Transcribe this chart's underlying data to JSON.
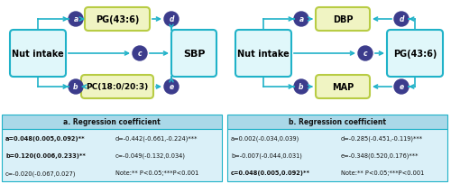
{
  "fig_width": 5.0,
  "fig_height": 2.05,
  "dpi": 100,
  "bg_color": "#ffffff",
  "arrow_color": "#20b2c8",
  "circle_fill": "#3c3c8c",
  "circle_edge": "#3c3c8c",
  "circle_text": "#ffffff",
  "cyan_box_fill": "#e0f7fa",
  "cyan_box_edge": "#20b2c8",
  "cyan_box_text": "#000000",
  "green_box_fill": "#f0f4c3",
  "green_box_edge": "#b8cc44",
  "green_box_text": "#000000",
  "table_header_bg": "#aad8e8",
  "table_body_bg": "#daf0f8",
  "table_border": "#20b2c8",
  "panel_a": {
    "table_title": "a. Regression coefficient",
    "table_rows": [
      [
        "a=0.048(0.005,0.092)**",
        "d=-0.442(-0.661,-0.224)***"
      ],
      [
        "b=0.120(0.006,0.233)**",
        "c=-0.049(-0.132,0.034)"
      ],
      [
        "c=-0.020(-0.067,0.027)",
        "Note:** P<0.05;***P<0.001"
      ]
    ],
    "bold_rows": [
      0,
      1
    ]
  },
  "panel_b": {
    "table_title": "b. Regression coefficient",
    "table_rows": [
      [
        "a=0.002(-0.034,0.039)",
        "d=-0.285(-0.451,-0.119)***"
      ],
      [
        "b=-0.007(-0.044,0.031)",
        "e=-0.348(0.520,0.176)***"
      ],
      [
        "c=0.048(0.005,0.092)**",
        "Note:** P<0.05;***P<0.001"
      ]
    ],
    "bold_rows": [
      2
    ]
  }
}
